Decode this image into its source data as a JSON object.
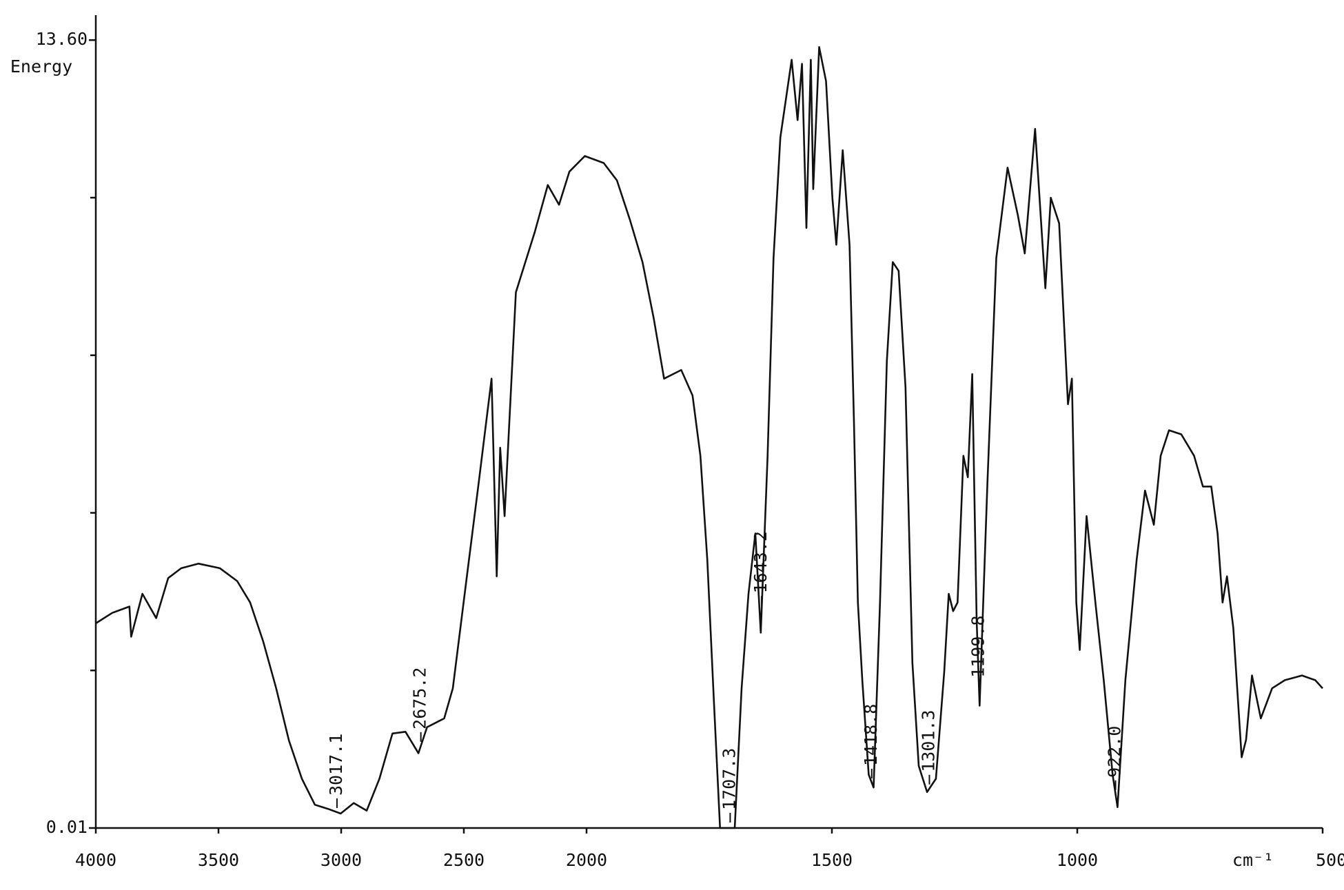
{
  "chart_data": {
    "type": "line",
    "y_label": "Energy",
    "x_unit_label": "cm⁻¹",
    "xlim": [
      4000,
      500
    ],
    "x_scale_change": {
      "at": 2000,
      "factor": 2
    },
    "xticks": [
      4000,
      3500,
      3000,
      2500,
      2000,
      1500,
      1000,
      500
    ],
    "ylim": [
      0.01,
      14.03
    ],
    "yticks": [
      {
        "value": 13.6,
        "label": "13.60"
      },
      0.01
    ],
    "yminor_ticks": [
      2.728,
      5.446,
      8.164,
      10.882
    ],
    "color": "#111111",
    "x": [
      4000,
      3933,
      3863,
      3856,
      3810,
      3754,
      3705,
      3652,
      3582,
      3494,
      3424,
      3371,
      3318,
      3265,
      3213,
      3160,
      3107,
      3054,
      3002,
      2949,
      2896,
      2844,
      2791,
      2738,
      2685,
      2650,
      2580,
      2545,
      2492,
      2439,
      2387,
      2366,
      2352,
      2334,
      2288,
      2211,
      2158,
      2112,
      2070,
      2007,
      1965,
      1938,
      1912,
      1886,
      1863,
      1842,
      1807,
      1784,
      1768,
      1754,
      1740,
      1728,
      1698,
      1684,
      1670,
      1656,
      1645,
      1631,
      1619,
      1605,
      1582,
      1570,
      1561,
      1552,
      1543,
      1538,
      1526,
      1512,
      1499,
      1491,
      1478,
      1464,
      1455,
      1447,
      1438,
      1425,
      1415,
      1402,
      1388,
      1376,
      1364,
      1350,
      1336,
      1323,
      1306,
      1288,
      1271,
      1262,
      1253,
      1244,
      1232,
      1223,
      1214,
      1205,
      1199,
      1183,
      1165,
      1142,
      1121,
      1107,
      1086,
      1065,
      1054,
      1037,
      1019,
      1011,
      1002,
      995,
      981,
      963,
      946,
      928,
      918,
      902,
      879,
      862,
      844,
      830,
      813,
      788,
      762,
      744,
      727,
      714,
      704,
      695,
      682,
      665,
      656,
      644,
      626,
      603,
      577,
      542,
      515,
      500
    ],
    "values": [
      3.54,
      3.72,
      3.83,
      3.31,
      4.05,
      3.63,
      4.32,
      4.49,
      4.57,
      4.49,
      4.27,
      3.9,
      3.23,
      2.42,
      1.52,
      0.86,
      0.41,
      0.34,
      0.26,
      0.44,
      0.31,
      0.86,
      1.64,
      1.67,
      1.3,
      1.75,
      1.9,
      2.42,
      4.2,
      5.98,
      7.76,
      4.35,
      6.57,
      5.39,
      9.25,
      10.29,
      11.1,
      10.76,
      11.33,
      11.6,
      11.48,
      11.18,
      10.51,
      9.77,
      8.8,
      7.76,
      7.91,
      7.47,
      6.43,
      4.64,
      2.12,
      0.01,
      0.01,
      2.42,
      4.05,
      5.09,
      3.38,
      6.43,
      9.84,
      11.92,
      13.26,
      12.22,
      13.19,
      10.36,
      13.26,
      11.03,
      13.48,
      12.89,
      10.88,
      10.07,
      11.7,
      10.07,
      7.02,
      3.9,
      2.56,
      0.93,
      0.71,
      3.9,
      8.06,
      9.77,
      9.62,
      7.61,
      2.86,
      1.08,
      0.63,
      0.86,
      2.71,
      4.05,
      3.75,
      3.9,
      6.43,
      6.06,
      7.84,
      3.6,
      2.12,
      5.98,
      9.84,
      11.4,
      10.58,
      9.92,
      12.07,
      9.32,
      10.88,
      10.44,
      7.32,
      7.76,
      3.9,
      3.08,
      5.39,
      3.9,
      2.56,
      0.93,
      0.37,
      2.56,
      4.64,
      5.83,
      5.24,
      6.43,
      6.87,
      6.8,
      6.43,
      5.9,
      5.9,
      5.09,
      3.9,
      4.35,
      3.46,
      1.23,
      1.53,
      2.64,
      1.9,
      2.42,
      2.56,
      2.64,
      2.56,
      2.42
    ],
    "annotations": [
      {
        "value": 3017.1,
        "label": "3017.1"
      },
      {
        "value": 2675.2,
        "label": "2675.2"
      },
      {
        "value": 1707.3,
        "label": "1707.3"
      },
      {
        "value": 1643.2,
        "label": "1643.2"
      },
      {
        "value": 1418.8,
        "label": "1418.8"
      },
      {
        "value": 1301.3,
        "label": "1301.3"
      },
      {
        "value": 1199.8,
        "label": "1199.8"
      },
      {
        "value": 922,
        "label": "922.0"
      }
    ]
  }
}
